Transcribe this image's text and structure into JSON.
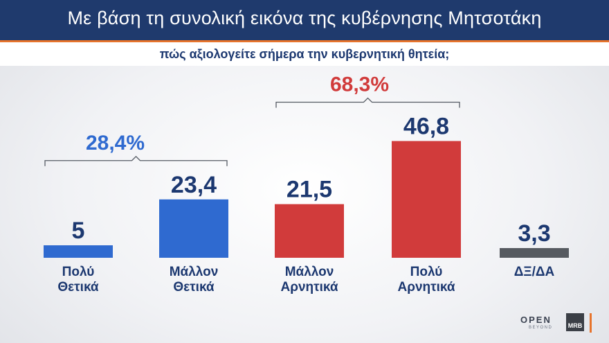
{
  "header": {
    "title": "Με βάση τη συνολική εικόνα της κυβέρνησης Μητσοτάκη",
    "subtitle": "πώς αξιολογείτε σήμερα την κυβερνητική θητεία;"
  },
  "colors": {
    "header_bg": "#1f3a6d",
    "accent_orange": "#e7742c",
    "positive_blue": "#2f6ad0",
    "negative_red": "#d13b3b",
    "neutral_gray": "#565a60",
    "text_navy": "#1c3870"
  },
  "chart_data": {
    "type": "bar",
    "title": "Με βάση τη συνολική εικόνα της κυβέρνησης Μητσοτάκη",
    "subtitle": "πώς αξιολογείτε σήμερα την κυβερνητική θητεία;",
    "categories": [
      [
        "Πολύ",
        "Θετικά"
      ],
      [
        "Μάλλον",
        "Θετικά"
      ],
      [
        "Μάλλον",
        "Αρνητικά"
      ],
      [
        "Πολύ",
        "Αρνητικά"
      ],
      [
        "ΔΞ/ΔΑ"
      ]
    ],
    "values": [
      5,
      23.4,
      21.5,
      46.8,
      3.3
    ],
    "value_labels": [
      "5",
      "23,4",
      "21,5",
      "46,8",
      "3,3"
    ],
    "bar_colors": [
      "#2f6ad0",
      "#2f6ad0",
      "#d13b3b",
      "#d13b3b",
      "#565a60"
    ],
    "groups": [
      {
        "label": "28,4%",
        "from": 0,
        "to": 1,
        "color": "#2f6ad0"
      },
      {
        "label": "68,3%",
        "from": 2,
        "to": 3,
        "color": "#d13b3b"
      }
    ],
    "ylim": [
      0,
      50
    ],
    "grid": false,
    "xlabel": "",
    "ylabel": ""
  },
  "branding": {
    "open_logo": "OPEN",
    "open_sub": "BEYOND",
    "mrb_logo": "MRB"
  }
}
